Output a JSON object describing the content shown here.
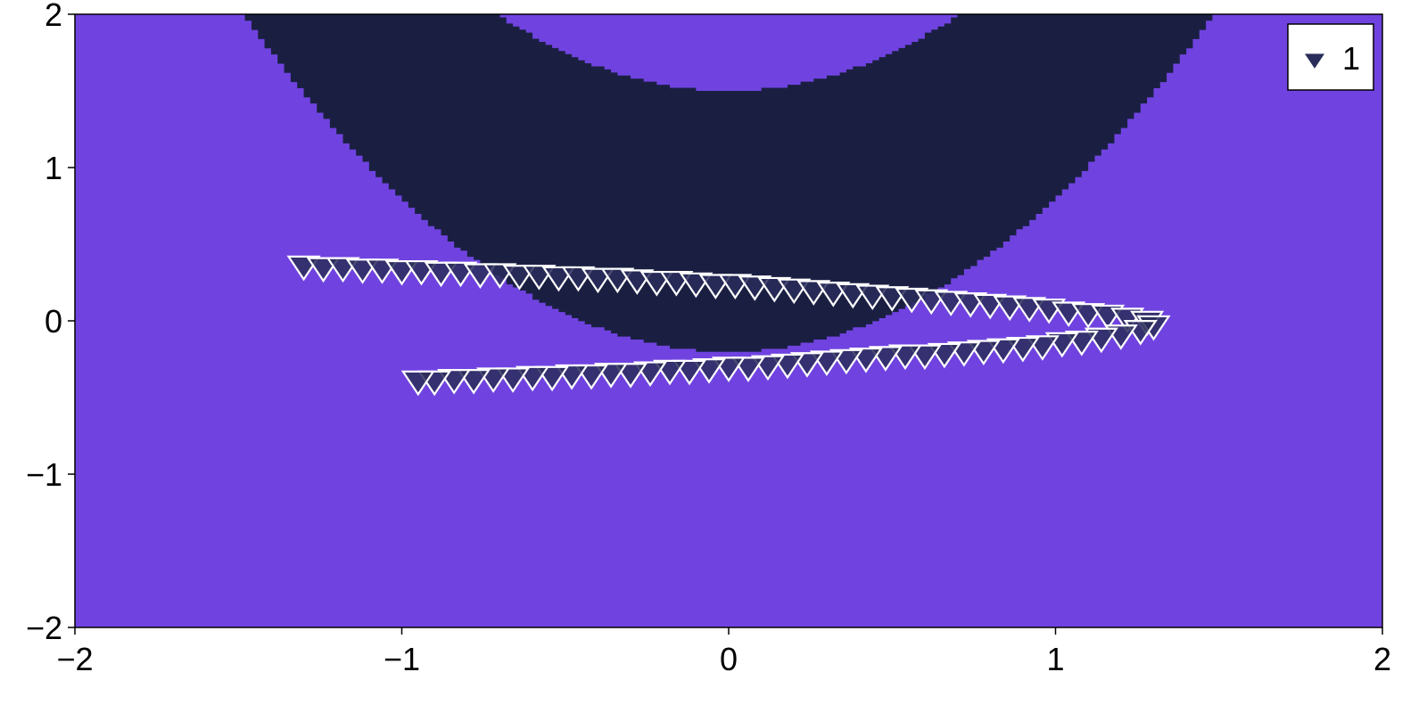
{
  "chart_data": {
    "type": "scatter",
    "title": "",
    "xlabel": "",
    "ylabel": "",
    "xlim": [
      -2,
      2
    ],
    "ylim": [
      -2,
      2
    ],
    "x_ticks": [
      -2,
      -1,
      0,
      1,
      2
    ],
    "y_ticks": [
      -2,
      -1,
      0,
      1,
      2
    ],
    "x_tick_labels": [
      "−2",
      "−1",
      "0",
      "1",
      "2"
    ],
    "y_tick_labels": [
      "−2",
      "−1",
      "0",
      "1",
      "2"
    ],
    "grid": false,
    "legend_position": "top-right",
    "background_field": {
      "description": "binary decision region",
      "colors": {
        "outside": "#7043e0",
        "inside": "#1a1f42"
      }
    },
    "series": [
      {
        "name": "1",
        "marker": "triangle-down",
        "fill": "#2a2d5a",
        "stroke": "#ffffff",
        "x": [
          -1.3,
          -1.24,
          -1.18,
          -1.12,
          -1.06,
          -1.0,
          -0.94,
          -0.88,
          -0.82,
          -0.76,
          -0.7,
          -0.64,
          -0.58,
          -0.52,
          -0.46,
          -0.4,
          -0.34,
          -0.28,
          -0.22,
          -0.16,
          -0.1,
          -0.04,
          0.02,
          0.08,
          0.14,
          0.2,
          0.26,
          0.32,
          0.38,
          0.44,
          0.5,
          0.56,
          0.62,
          0.68,
          0.74,
          0.8,
          0.86,
          0.92,
          0.98,
          1.04,
          1.1,
          1.16,
          1.22,
          1.28,
          1.3,
          1.26,
          1.2,
          1.14,
          1.08,
          1.02,
          0.96,
          0.9,
          0.84,
          0.78,
          0.72,
          0.66,
          0.6,
          0.54,
          0.48,
          0.42,
          0.36,
          0.3,
          0.24,
          0.18,
          0.12,
          0.06,
          0.0,
          -0.06,
          -0.12,
          -0.18,
          -0.24,
          -0.3,
          -0.36,
          -0.42,
          -0.48,
          -0.54,
          -0.6,
          -0.66,
          -0.72,
          -0.78,
          -0.84,
          -0.9,
          -0.95
        ],
        "y": [
          0.36,
          0.35,
          0.35,
          0.34,
          0.34,
          0.33,
          0.33,
          0.32,
          0.32,
          0.31,
          0.31,
          0.3,
          0.3,
          0.29,
          0.29,
          0.28,
          0.28,
          0.27,
          0.26,
          0.26,
          0.25,
          0.24,
          0.24,
          0.23,
          0.22,
          0.21,
          0.2,
          0.19,
          0.18,
          0.17,
          0.16,
          0.15,
          0.14,
          0.13,
          0.12,
          0.11,
          0.1,
          0.09,
          0.08,
          0.06,
          0.05,
          0.04,
          0.02,
          0.0,
          -0.03,
          -0.06,
          -0.09,
          -0.11,
          -0.13,
          -0.14,
          -0.16,
          -0.17,
          -0.18,
          -0.19,
          -0.2,
          -0.21,
          -0.22,
          -0.22,
          -0.23,
          -0.24,
          -0.25,
          -0.26,
          -0.27,
          -0.28,
          -0.29,
          -0.3,
          -0.3,
          -0.31,
          -0.32,
          -0.32,
          -0.33,
          -0.34,
          -0.34,
          -0.35,
          -0.35,
          -0.36,
          -0.36,
          -0.37,
          -0.37,
          -0.38,
          -0.38,
          -0.39,
          -0.39
        ]
      }
    ]
  },
  "legend": {
    "label": "1"
  },
  "colors": {
    "region_outside": "#7043e0",
    "region_inside": "#1a1f42",
    "marker_fill": "#2a2d5a",
    "marker_stroke": "#ffffff"
  }
}
